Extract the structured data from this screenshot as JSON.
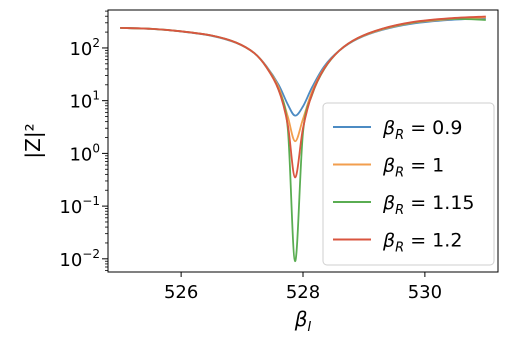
{
  "chart_data": {
    "type": "line",
    "title": "",
    "xlabel_base": "β",
    "xlabel_sub": "I",
    "ylabel": "|Z|²",
    "xlim": [
      524.8,
      531.2
    ],
    "ylim_log10": [
      -2.25,
      2.72
    ],
    "yscale": "log",
    "x_ticks": [
      {
        "value": 526,
        "label": "526"
      },
      {
        "value": 528,
        "label": "528"
      },
      {
        "value": 530,
        "label": "530"
      }
    ],
    "y_ticks": [
      {
        "exp": 2,
        "base": "10",
        "sup": "2"
      },
      {
        "exp": 1,
        "base": "10",
        "sup": "1"
      },
      {
        "exp": 0,
        "base": "10",
        "sup": "0"
      },
      {
        "exp": -1,
        "base": "10",
        "sup": "−1"
      },
      {
        "exp": -2,
        "base": "10",
        "sup": "−2"
      }
    ],
    "grid": false,
    "legend_position": "center-right",
    "x": [
      525.0,
      525.5,
      526.0,
      526.5,
      526.9,
      527.2,
      527.4,
      527.6,
      527.75,
      527.87,
      528.0,
      528.15,
      528.35,
      528.6,
      528.9,
      529.3,
      529.8,
      530.4,
      531.0
    ],
    "series": [
      {
        "legend_base": "β",
        "legend_sub": "R",
        "legend_value": " = 0.9",
        "color": "#4c8bc3",
        "values": [
          240,
          230,
          205,
          170,
          125,
          80,
          45,
          20,
          8.5,
          5.2,
          7.8,
          18,
          45,
          90,
          150,
          220,
          290,
          340,
          365
        ]
      },
      {
        "legend_base": "β",
        "legend_sub": "R",
        "legend_value": " = 1",
        "color": "#f29e4d",
        "values": [
          240,
          230,
          206,
          171,
          126,
          80,
          44,
          18,
          5,
          1.7,
          4.5,
          15,
          42,
          90,
          152,
          225,
          300,
          350,
          380
        ]
      },
      {
        "legend_base": "β",
        "legend_sub": "R",
        "legend_value": " = 1.15",
        "color": "#5aad52",
        "values": [
          240,
          231,
          207,
          172,
          127,
          80,
          43,
          16,
          3,
          0.009,
          2.5,
          13,
          40,
          90,
          154,
          230,
          305,
          355,
          340
        ]
      },
      {
        "legend_base": "β",
        "legend_sub": "R",
        "legend_value": " = 1.2",
        "color": "#d9553f",
        "values": [
          240,
          231,
          207,
          172,
          127,
          80,
          43,
          16,
          3.5,
          0.35,
          3,
          13.5,
          41,
          90,
          155,
          232,
          310,
          365,
          395
        ]
      }
    ]
  }
}
